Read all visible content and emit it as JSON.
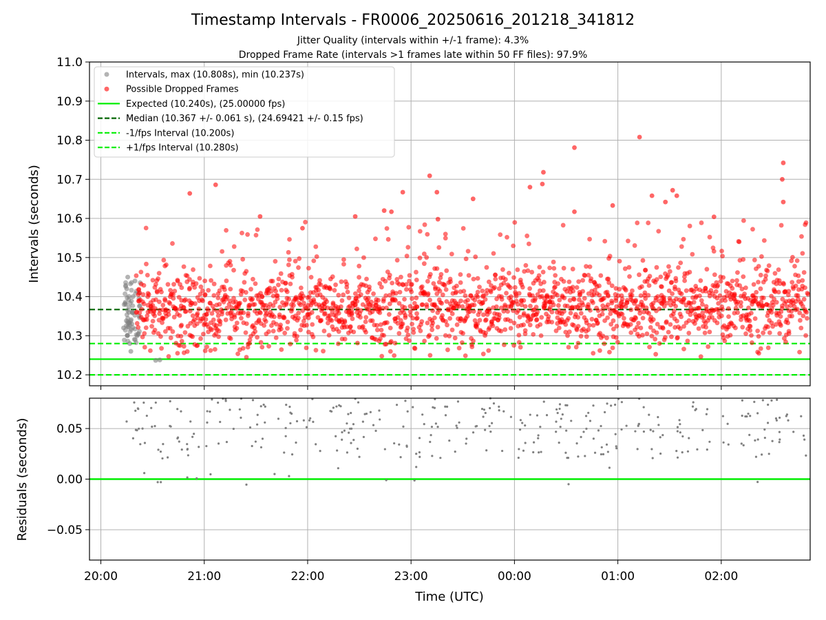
{
  "chart_data": [
    {
      "type": "scatter",
      "title": "Timestamp Intervals - FR0006_20250616_201218_341812",
      "subtitle_lines": [
        "Jitter Quality (intervals within +/-1 frame): 4.3%",
        "Dropped Frame Rate (intervals >1 frames late within 50 FF files): 97.9%"
      ],
      "xlabel": "",
      "ylabel": "Intervals (seconds)",
      "x_unit": "hours since 20:00 UTC (2025-06-16)",
      "xlim": [
        -0.11,
        6.86
      ],
      "ylim": [
        10.172,
        11.0
      ],
      "yticks": [
        "10.2",
        "10.3",
        "10.4",
        "10.5",
        "10.6",
        "10.7",
        "10.8",
        "10.9",
        "11.0"
      ],
      "grid": true,
      "legend_position": "top-left",
      "legend": [
        {
          "label": "Intervals, max (10.808s), min (10.237s)",
          "kind": "marker",
          "color": "#808080"
        },
        {
          "label": "Possible Dropped Frames",
          "kind": "marker",
          "color": "#ff0000"
        },
        {
          "label": "Expected (10.240s), (25.00000 fps)",
          "kind": "solid",
          "color": "#00ee00"
        },
        {
          "label": "Median (10.367 +/- 0.061 s), (24.69421 +/- 0.15 fps)",
          "kind": "dashed",
          "color": "#006400"
        },
        {
          "label": "-1/fps Interval (10.200s)",
          "kind": "dashed",
          "color": "#00ee00"
        },
        {
          "label": "+1/fps Interval (10.280s)",
          "kind": "dashed",
          "color": "#00ee00"
        }
      ],
      "reference_lines": [
        {
          "name": "Expected",
          "y": 10.24,
          "style": "solid",
          "color": "#00ee00"
        },
        {
          "name": "Median",
          "y": 10.367,
          "style": "dashed",
          "color": "#006400"
        },
        {
          "name": "-1/fps Interval",
          "y": 10.2,
          "style": "dashed",
          "color": "#00ee00"
        },
        {
          "name": "+1/fps Interval",
          "y": 10.28,
          "style": "dashed",
          "color": "#00ee00"
        }
      ],
      "series": [
        {
          "name": "Intervals, max (10.808s), min (10.237s)",
          "color": "#808080",
          "points_sample": [
            [
              0.22,
              10.32
            ],
            [
              0.24,
              10.38
            ],
            [
              0.25,
              10.42
            ],
            [
              0.26,
              10.45
            ],
            [
              0.27,
              10.36
            ],
            [
              0.28,
              10.28
            ],
            [
              0.29,
              10.26
            ],
            [
              0.3,
              10.33
            ],
            [
              0.31,
              10.4
            ],
            [
              0.33,
              10.44
            ],
            [
              0.35,
              10.3
            ],
            [
              0.37,
              10.35
            ],
            [
              0.53,
              10.237
            ],
            [
              0.57,
              10.238
            ]
          ]
        },
        {
          "name": "Possible Dropped Frames",
          "color": "#ff0000",
          "generator": "dense band approximately 10.25-10.50 s across 0.35-6.86 h with outliers up to the max",
          "outliers": [
            [
              0.86,
              10.664
            ],
            [
              1.11,
              10.686
            ],
            [
              1.54,
              10.605
            ],
            [
              1.95,
              10.575
            ],
            [
              2.46,
              10.605
            ],
            [
              2.74,
              10.62
            ],
            [
              2.81,
              10.617
            ],
            [
              2.92,
              10.667
            ],
            [
              3.18,
              10.709
            ],
            [
              3.25,
              10.667
            ],
            [
              3.26,
              10.598
            ],
            [
              3.6,
              10.65
            ],
            [
              4.15,
              10.68
            ],
            [
              4.28,
              10.718
            ],
            [
              4.27,
              10.688
            ],
            [
              4.58,
              10.781
            ],
            [
              4.58,
              10.617
            ],
            [
              4.95,
              10.633
            ],
            [
              5.21,
              10.808
            ],
            [
              5.33,
              10.658
            ],
            [
              5.53,
              10.672
            ],
            [
              5.46,
              10.642
            ],
            [
              5.57,
              10.658
            ],
            [
              5.93,
              10.604
            ],
            [
              6.6,
              10.742
            ],
            [
              6.59,
              10.7
            ],
            [
              6.6,
              10.642
            ]
          ]
        }
      ]
    },
    {
      "type": "scatter",
      "title": "",
      "xlabel": "Time (UTC)",
      "ylabel": "Residuals (seconds)",
      "xlim": [
        -0.11,
        6.86
      ],
      "ylim": [
        -0.08,
        0.08
      ],
      "yticks": [
        "−0.05",
        "0.00",
        "0.05"
      ],
      "xticks": [
        "20:00",
        "21:00",
        "22:00",
        "23:00",
        "00:00",
        "01:00",
        "02:00"
      ],
      "xtick_hours": [
        0,
        1,
        2,
        3,
        4,
        5,
        6
      ],
      "grid": true,
      "reference_lines": [
        {
          "name": "Expected",
          "y": 0.0,
          "style": "solid",
          "color": "#00ee00"
        }
      ],
      "series": [
        {
          "color": "#808080",
          "generator": "residual points approximately 0.0-0.08 s across 0.22-6.86 h",
          "low_points": [
            [
              0.55,
              -0.003
            ],
            [
              0.58,
              -0.003
            ],
            [
              0.42,
              0.006
            ],
            [
              1.82,
              0.003
            ],
            [
              1.68,
              0.005
            ],
            [
              3.05,
              0.012
            ],
            [
              3.05,
              0.025
            ],
            [
              2.5,
              0.022
            ],
            [
              4.51,
              0.021
            ],
            [
              4.52,
              0.021
            ]
          ]
        }
      ]
    }
  ]
}
